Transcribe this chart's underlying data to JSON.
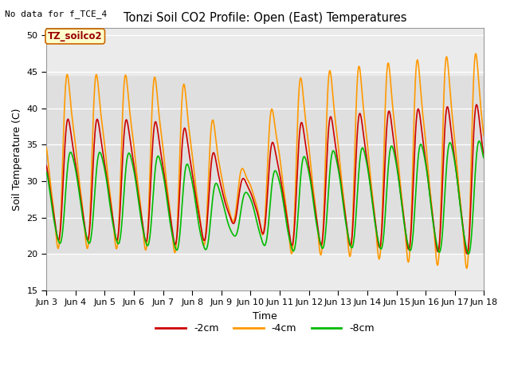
{
  "title": "Tonzi Soil CO2 Profile: Open (East) Temperatures",
  "xlabel": "Time",
  "ylabel": "Soil Temperature (C)",
  "no_data_label": "No data for f_TCE_4",
  "annotation_label": "TZ_soilco2",
  "ylim": [
    15,
    51
  ],
  "yticks": [
    15,
    20,
    25,
    30,
    35,
    40,
    45,
    50
  ],
  "x_tick_labels": [
    "Jun 3",
    "Jun 4",
    "Jun 5",
    "Jun 6",
    "Jun 7",
    "Jun 8",
    "Jun 9",
    "Jun 10",
    "Jun 11",
    "Jun 12",
    "Jun 13",
    "Jun 14",
    "Jun 15",
    "Jun 16",
    "Jun 17",
    "Jun 18"
  ],
  "color_2cm": "#cc0000",
  "color_4cm": "#ff9900",
  "color_8cm": "#00bb00",
  "legend_labels": [
    "-2cm",
    "-4cm",
    "-8cm"
  ],
  "plot_bg_color": "#ebebeb",
  "linewidth": 1.2,
  "figsize": [
    6.4,
    4.8
  ],
  "dpi": 100
}
